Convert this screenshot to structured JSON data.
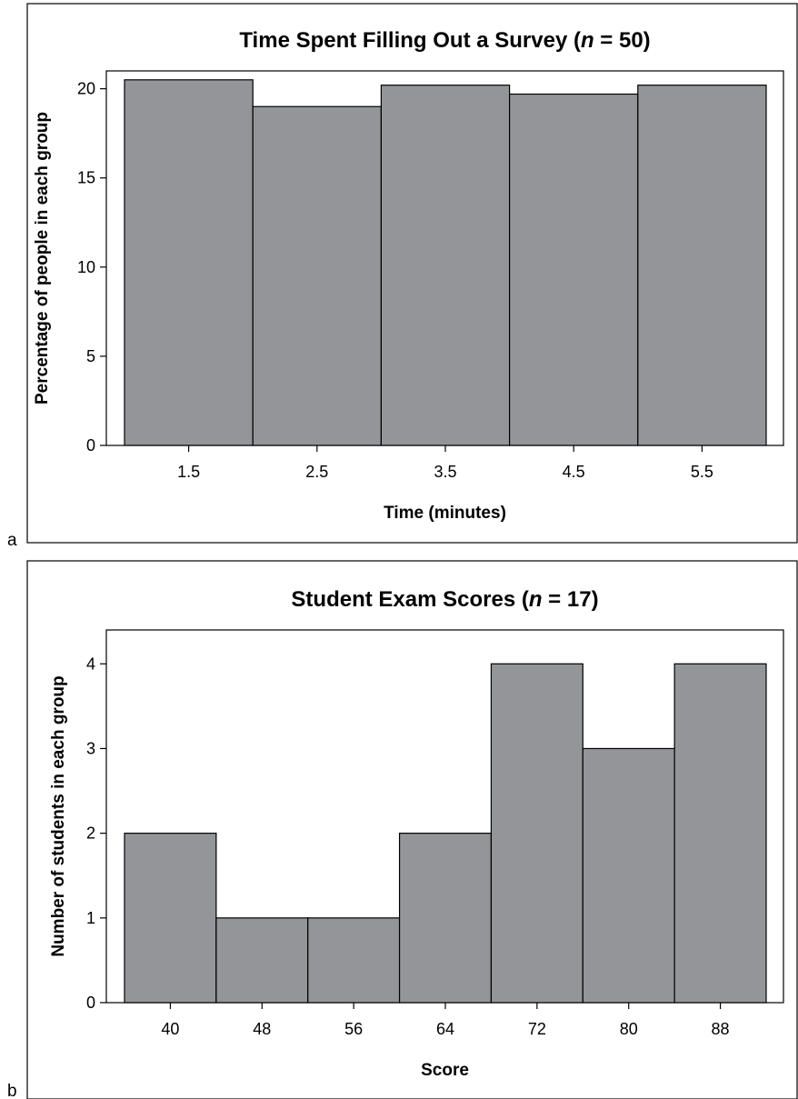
{
  "chart_data": [
    {
      "panel_label": "a",
      "type": "bar",
      "title_parts": [
        "Time Spent Filling Out a Survey (",
        "n",
        " = 50)"
      ],
      "xlabel": "Time (minutes)",
      "ylabel": "Percentage of people in each group",
      "categories": [
        "1.5",
        "2.5",
        "3.5",
        "4.5",
        "5.5"
      ],
      "values": [
        20.5,
        19,
        20.2,
        19.7,
        20.2
      ],
      "ylim": [
        0,
        21
      ],
      "yticks": [
        0,
        5,
        10,
        15,
        20
      ],
      "grid": false
    },
    {
      "panel_label": "b",
      "type": "bar",
      "title_parts": [
        "Student Exam Scores (",
        "n",
        " = 17)"
      ],
      "xlabel": "Score",
      "ylabel": "Number of students in each group",
      "categories": [
        "40",
        "48",
        "56",
        "64",
        "72",
        "80",
        "88"
      ],
      "values": [
        2,
        1,
        1,
        2,
        4,
        3,
        4
      ],
      "ylim": [
        0,
        4.4
      ],
      "yticks": [
        0,
        1,
        2,
        3,
        4
      ],
      "grid": false
    }
  ],
  "colors": {
    "bar_fill": "#939598",
    "bar_stroke": "#000000",
    "background": "#ffffff",
    "frame": "#000000"
  }
}
